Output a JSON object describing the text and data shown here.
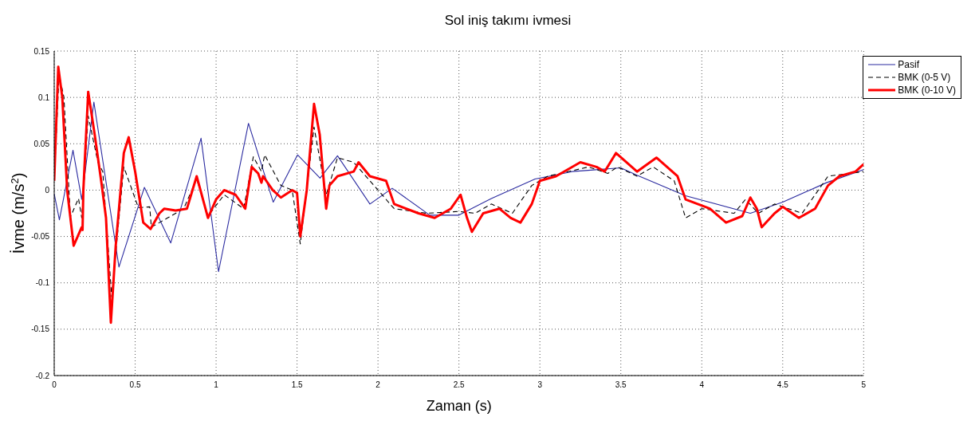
{
  "chart_data": {
    "type": "line",
    "title": "Sol iniş takımı ivmesi",
    "xlabel": "Zaman (s)",
    "ylabel": "İvme (m/s$^{2}$)",
    "xlim": [
      0,
      5
    ],
    "xticks": [
      0,
      0.5,
      1,
      1.5,
      2,
      2.5,
      3,
      3.5,
      4,
      4.5,
      5
    ],
    "ylim": [
      -0.2,
      0.15
    ],
    "yticks": [
      -0.2,
      -0.15,
      -0.1,
      -0.05,
      0,
      0.05,
      0.1,
      0.15
    ],
    "grid": true,
    "legend": "top right",
    "marker": "none",
    "series": [
      {
        "name": "Pasif",
        "color": "#2b2ba0",
        "line_style": "solid",
        "x": [
          0,
          0.032,
          0.116,
          0.17,
          0.245,
          0.4,
          0.557,
          0.72,
          0.907,
          1.015,
          1.2,
          1.353,
          1.503,
          1.642,
          1.75,
          1.95,
          2.088,
          2.32,
          2.5,
          2.7,
          2.97,
          3.2,
          3.5,
          3.6,
          3.9,
          4.3,
          4.5,
          4.77,
          5
        ],
        "values": [
          -0.004,
          -0.032,
          0.043,
          -0.01,
          0.095,
          -0.083,
          0.003,
          -0.057,
          0.056,
          -0.088,
          0.072,
          -0.013,
          0.038,
          0.013,
          0.037,
          -0.015,
          0.002,
          -0.027,
          -0.027,
          -0.009,
          0.012,
          0.02,
          0.024,
          0.016,
          -0.006,
          -0.025,
          -0.013,
          0.008,
          0.022
        ]
      },
      {
        "name": "BMK (0-5 V)",
        "color": "#000000",
        "line_style": "dashed",
        "x": [
          0,
          0.03,
          0.06,
          0.1,
          0.15,
          0.17,
          0.21,
          0.27,
          0.3,
          0.355,
          0.43,
          0.52,
          0.59,
          0.6,
          0.7,
          0.8,
          0.88,
          0.95,
          1.05,
          1.17,
          1.23,
          1.28,
          1.3,
          1.4,
          1.47,
          1.52,
          1.605,
          1.68,
          1.75,
          1.85,
          1.95,
          2.1,
          2.3,
          2.5,
          2.6,
          2.7,
          2.83,
          2.95,
          3.05,
          3.3,
          3.42,
          3.48,
          3.6,
          3.7,
          3.83,
          3.9,
          4.0,
          4.2,
          4.27,
          4.35,
          4.45,
          4.62,
          4.78,
          5
        ],
        "values": [
          0.01,
          0.125,
          0.1,
          -0.029,
          -0.009,
          -0.03,
          0.08,
          0.03,
          0.02,
          -0.115,
          0.025,
          -0.019,
          -0.018,
          -0.04,
          -0.03,
          -0.02,
          0.012,
          -0.028,
          -0.005,
          -0.02,
          0.036,
          0.02,
          0.038,
          0.005,
          0,
          -0.058,
          0.068,
          -0.005,
          0.035,
          0.03,
          0.01,
          -0.02,
          -0.025,
          -0.023,
          -0.025,
          -0.015,
          -0.025,
          0.005,
          0.015,
          0.025,
          0.018,
          0.025,
          0.015,
          0.025,
          0.01,
          -0.03,
          -0.02,
          -0.025,
          -0.01,
          -0.025,
          -0.015,
          -0.025,
          0.015,
          0.02
        ]
      },
      {
        "name": "BMK (0-10 V)",
        "color": "#ff0000",
        "line_style": "solid",
        "x": [
          0,
          0.025,
          0.05,
          0.08,
          0.12,
          0.17,
          0.175,
          0.18,
          0.21,
          0.25,
          0.29,
          0.32,
          0.35,
          0.38,
          0.43,
          0.46,
          0.5,
          0.55,
          0.57,
          0.595,
          0.65,
          0.68,
          0.75,
          0.82,
          0.88,
          0.95,
          1.0,
          1.05,
          1.12,
          1.18,
          1.22,
          1.26,
          1.28,
          1.29,
          1.35,
          1.4,
          1.47,
          1.5,
          1.52,
          1.56,
          1.605,
          1.64,
          1.68,
          1.7,
          1.75,
          1.85,
          1.88,
          1.95,
          2.05,
          2.1,
          2.25,
          2.35,
          2.45,
          2.51,
          2.55,
          2.58,
          2.65,
          2.75,
          2.82,
          2.88,
          2.95,
          3.0,
          3.1,
          3.25,
          3.35,
          3.4,
          3.47,
          3.6,
          3.72,
          3.85,
          3.9,
          4.05,
          4.15,
          4.25,
          4.3,
          4.34,
          4.37,
          4.45,
          4.5,
          4.6,
          4.7,
          4.78,
          4.85,
          4.95,
          5
        ],
        "values": [
          0.01,
          0.133,
          0.1,
          0,
          -0.06,
          -0.04,
          -0.043,
          0,
          0.106,
          0.06,
          0.01,
          -0.03,
          -0.143,
          -0.06,
          0.04,
          0.057,
          0.02,
          -0.035,
          -0.038,
          -0.042,
          -0.025,
          -0.02,
          -0.022,
          -0.02,
          0.015,
          -0.03,
          -0.01,
          0,
          -0.005,
          -0.02,
          0.025,
          0.018,
          0.008,
          0.015,
          0,
          -0.008,
          0,
          -0.003,
          -0.05,
          0,
          0.093,
          0.06,
          -0.02,
          0.005,
          0.015,
          0.02,
          0.03,
          0.015,
          0.01,
          -0.015,
          -0.025,
          -0.03,
          -0.02,
          -0.005,
          -0.03,
          -0.045,
          -0.025,
          -0.02,
          -0.03,
          -0.035,
          -0.015,
          0.01,
          0.015,
          0.03,
          0.025,
          0.02,
          0.04,
          0.02,
          0.035,
          0.015,
          -0.01,
          -0.02,
          -0.035,
          -0.028,
          -0.008,
          -0.02,
          -0.04,
          -0.025,
          -0.018,
          -0.03,
          -0.02,
          0.005,
          0.015,
          0.02,
          0.028
        ]
      }
    ]
  }
}
